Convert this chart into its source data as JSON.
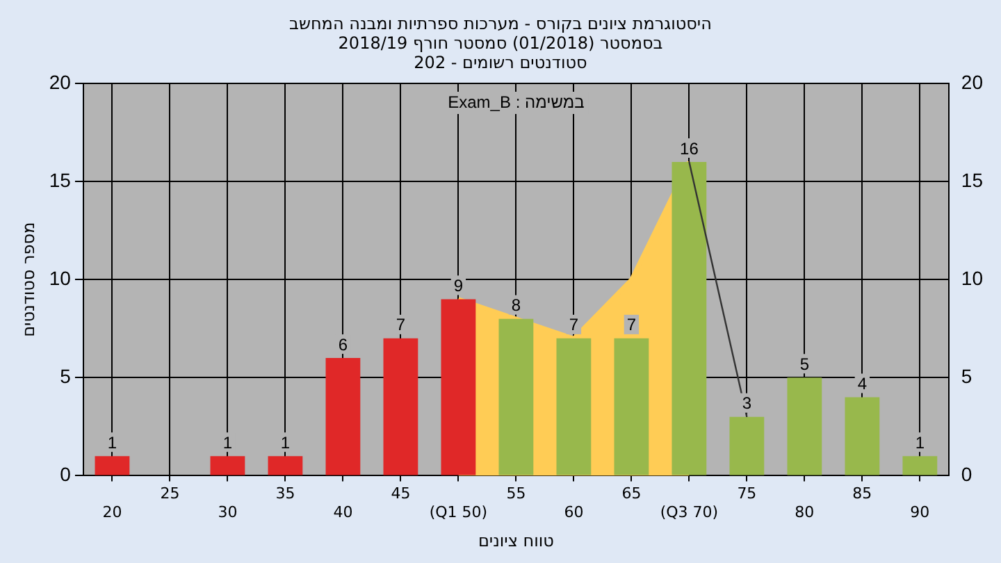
{
  "chart_data": {
    "type": "bar",
    "title": "היסטוגרמת ציונים בקורס - מערכות ספרתיות ומבנה המחשב",
    "subtitle": "בסמסטר (01/2018) סמסטר חורף 2018/19\nסטודנטים רשומים - 202",
    "xlabel": "טווח ציונים",
    "ylabel": "מספר סטודנטים",
    "annotations": [
      "במשימה : Exam_B"
    ],
    "categories": [
      "20",
      "25",
      "30",
      "35",
      "40",
      "45",
      "(Q1 50)",
      "55",
      "60",
      "65",
      "(Q3 70)",
      "75",
      "80",
      "85",
      "90"
    ],
    "series": [
      {
        "type": "area",
        "color": "#ffcc55",
        "values": [
          null,
          null,
          null,
          null,
          null,
          null,
          9,
          8,
          7,
          10,
          16,
          null,
          null,
          null,
          null
        ]
      },
      {
        "colors": [
          "#e02828",
          "#e02828",
          "#e02828",
          "#e02828",
          "#e02828",
          "#e02828",
          "#e02828",
          "#98b84c",
          "#98b84c",
          "#98b84c",
          "#98b84c",
          "#98b84c",
          "#98b84c",
          "#98b84c",
          "#98b84c"
        ],
        "values": [
          1,
          0,
          1,
          1,
          6,
          7,
          9,
          8,
          7,
          7,
          16,
          3,
          5,
          4,
          1
        ],
        "value_labels": [
          "1",
          null,
          "1",
          "1",
          "6",
          "7",
          "9",
          "8",
          "7",
          "7",
          "16",
          "3",
          "5",
          "4",
          "1"
        ]
      },
      {
        "type": "line",
        "color": "#333333",
        "values": [
          null,
          null,
          null,
          null,
          null,
          null,
          null,
          null,
          null,
          null,
          16,
          3,
          null,
          null,
          null
        ]
      }
    ],
    "ylim": [
      0,
      20
    ],
    "yticks": [
      0,
      5,
      10,
      15,
      20
    ],
    "y2lim": [
      0,
      20
    ],
    "y2ticks": [
      0,
      5,
      10,
      15,
      20
    ],
    "grid": true,
    "legend": false,
    "marker": "none"
  }
}
